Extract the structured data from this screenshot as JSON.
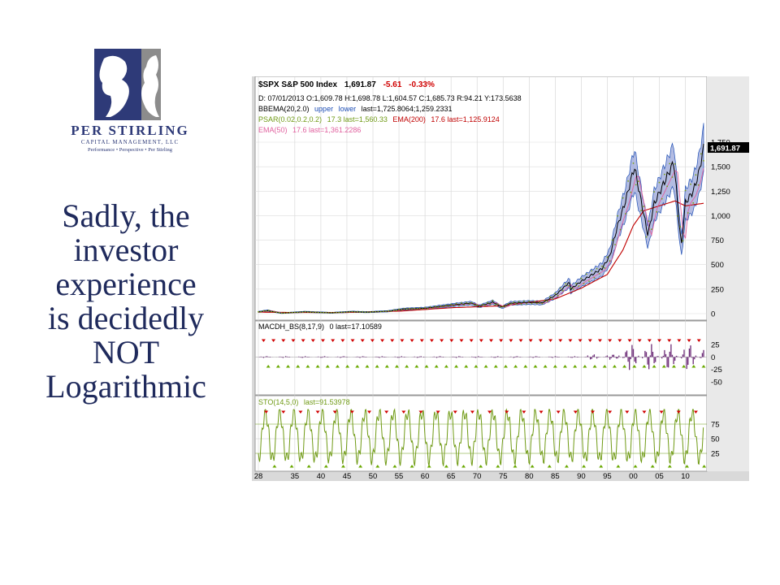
{
  "logo": {
    "name": "PER STIRLING",
    "subtitle": "CAPITAL MANAGEMENT, LLC",
    "motto": "Performance • Perspective • Per Stirling",
    "colors": {
      "navy": "#2e3a78",
      "gray": "#8c8c8c"
    }
  },
  "tagline": [
    "Sadly, the",
    "investor",
    "experience",
    "is decidedly",
    "NOT",
    "Logarithmic"
  ],
  "chart_data": {
    "type": "line",
    "header": {
      "symbol": "$SPX S&P 500 Index",
      "price": "1,691.87",
      "change": "-5.61",
      "change_pct": "-0.33%",
      "ohlc_line": "D: 07/01/2013 O:1,609.78 H:1,698.78 L:1,604.57 C:1,685.73 R:94.21    Y:173.5638",
      "bbema": "BBEMA(20,2.0)",
      "bbema_upper": "upper",
      "bbema_lower": "lower",
      "bbema_last": "last=1,725.8064;1,259.2331",
      "psar": "PSAR(0.02,0.2,0.2)",
      "psar_last": "17.3 last=1,560.33",
      "ema200": "EMA(200)",
      "ema200_last": "17.6 last=1,125.9124",
      "ema50": "EMA(50)",
      "ema50_last": "17.6 last=1,361.2286"
    },
    "price_axis": {
      "ticks": [
        0,
        250,
        500,
        750,
        1000,
        1250,
        1500,
        1750
      ],
      "labels": [
        "0",
        "250",
        "500",
        "750",
        "1,000",
        "1,250",
        "1,500",
        "1,750"
      ],
      "ylim": [
        0,
        1750
      ],
      "last_label": "1,691.87"
    },
    "x_labels": [
      "28",
      "35",
      "40",
      "45",
      "50",
      "55",
      "60",
      "65",
      "70",
      "75",
      "80",
      "85",
      "90",
      "95",
      "00",
      "05",
      "10"
    ],
    "x_years": [
      1928,
      1935,
      1940,
      1945,
      1950,
      1955,
      1960,
      1965,
      1970,
      1975,
      1980,
      1985,
      1990,
      1995,
      2000,
      2005,
      2010
    ],
    "xlim": [
      1928,
      2013.5
    ],
    "series": [
      {
        "x": [
          1928,
          1929.7,
          1932.5,
          1937,
          1942,
          1946,
          1949,
          1953,
          1956,
          1960,
          1966,
          1968.9,
          1970.4,
          1973,
          1974.8,
          1976.5,
          1980,
          1982.5,
          1985,
          1987.7,
          1988,
          1990,
          1994,
          1995.5,
          1997,
          1998.5,
          2000.2,
          2001.5,
          2002.8,
          2004,
          2007.8,
          2009.2,
          2010,
          2011.5,
          2012.5,
          2013.5
        ],
        "values": [
          17,
          31,
          5,
          18,
          8,
          19,
          15,
          25,
          47,
          55,
          93,
          108,
          75,
          118,
          65,
          107,
          115,
          110,
          185,
          320,
          250,
          330,
          460,
          590,
          900,
          1150,
          1500,
          1150,
          800,
          1120,
          1550,
          680,
          1130,
          1250,
          1420,
          1691.87
        ]
      },
      {
        "x": [
          1928,
          1935,
          1945,
          1955,
          1965,
          1975,
          1985,
          1990,
          1995,
          1998,
          2000,
          2002,
          2005,
          2008,
          2010,
          2013.5
        ],
        "values": [
          15,
          12,
          12,
          25,
          60,
          80,
          150,
          260,
          400,
          650,
          900,
          1050,
          1100,
          1150,
          1100,
          1125.9
        ]
      }
    ],
    "macd": {
      "label": "MACDH_BS(8,17,9)",
      "last": "0 last=17.10589",
      "ticks": [
        25,
        0,
        -25,
        -50
      ],
      "labels": [
        "25",
        "0",
        "-25",
        "-50"
      ],
      "ylim": [
        -70,
        45
      ]
    },
    "sto": {
      "label": "STO(14,5,0)",
      "last": "last=91.53978",
      "ticks": [
        75,
        50,
        25
      ],
      "labels": [
        "75",
        "50",
        "25"
      ],
      "ylim": [
        0,
        100
      ]
    },
    "colors": {
      "price": "#000000",
      "band": "#9aa6d8",
      "band_line": "#1f4fb5",
      "ema200": "#c00000",
      "ema50": "#e0609e",
      "psar": "#7aa012",
      "macd": "#6b2a76",
      "sto": "#6f9a14",
      "up_arrow": "#69a800",
      "down_arrow": "#d00000",
      "change": "#d00000"
    }
  }
}
